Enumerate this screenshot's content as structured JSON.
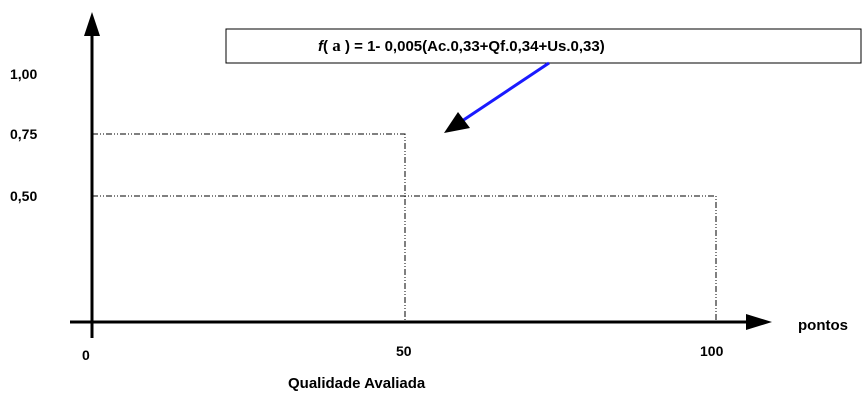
{
  "formula": {
    "func": "f",
    "open": "(",
    "arg": " a ",
    "rest": ") = 1- 0,005(Ac.0,33+Qf.0,34+Us.0,33)"
  },
  "y_tick_labels": [
    "1,00",
    "0,75",
    "0,50"
  ],
  "x_tick_labels": [
    "0",
    "50",
    "100"
  ],
  "x_unit_label": "pontos",
  "x_axis_title": "Qualidade Avaliada",
  "guide_levels": [
    {
      "x": 50,
      "y": 0.75
    },
    {
      "x": 100,
      "y": 0.5
    }
  ],
  "colors": {
    "axes": "#000000",
    "pointer_arrow": "#1a1aff"
  }
}
